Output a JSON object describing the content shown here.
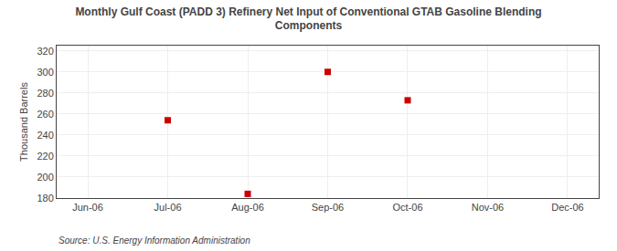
{
  "chart_data": {
    "type": "scatter",
    "title": "Monthly Gulf Coast (PADD 3) Refinery Net Input of Conventional GTAB Gasoline Blending\nComponents",
    "ylabel": "Thousand Barrels",
    "annotations": [
      "Source: U.S. Energy Information Administration"
    ],
    "categories": [
      "Jun-06",
      "Jul-06",
      "Aug-06",
      "Sep-06",
      "Oct-06",
      "Nov-06",
      "Dec-06"
    ],
    "values": [
      null,
      254,
      184,
      300,
      273,
      null,
      null
    ],
    "color": "#CC0000",
    "marker": "square",
    "ylim": [
      180,
      325
    ],
    "yticks": [
      180,
      200,
      220,
      240,
      260,
      280,
      300,
      320
    ],
    "grid": true
  }
}
